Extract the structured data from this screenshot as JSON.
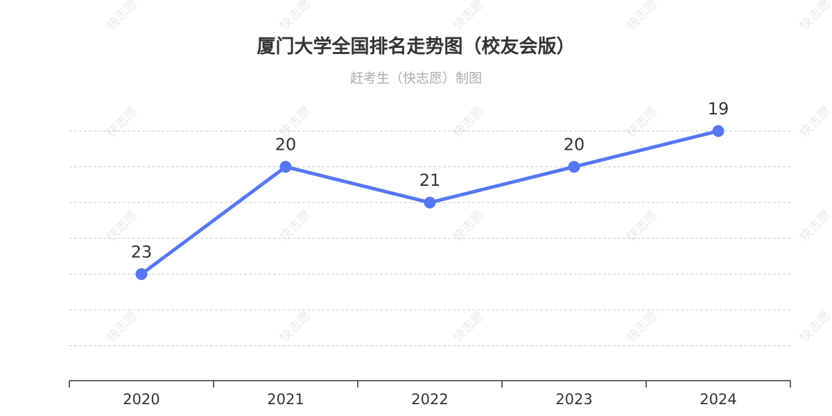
{
  "watermark_text": "快志愿",
  "colors": {
    "line": "#5677f0",
    "title": "#333333",
    "subtitle": "#aaaaaa",
    "grid": "#c8c8c8"
  },
  "chart_data": {
    "type": "line",
    "title": "厦门大学全国排名走势图（校友会版）",
    "subtitle": "赶考生（快志愿）制图",
    "xlabel": "",
    "ylabel": "",
    "categories": [
      "2020",
      "2021",
      "2022",
      "2023",
      "2024"
    ],
    "series": [
      {
        "values": [
          23,
          20,
          21,
          20,
          19
        ]
      }
    ],
    "y_axis": {
      "inverted": true,
      "range": [
        19,
        26
      ],
      "tick_labels_visible": false
    },
    "grid": "horizontal-dashed",
    "legend": "none",
    "data_labels": true
  }
}
